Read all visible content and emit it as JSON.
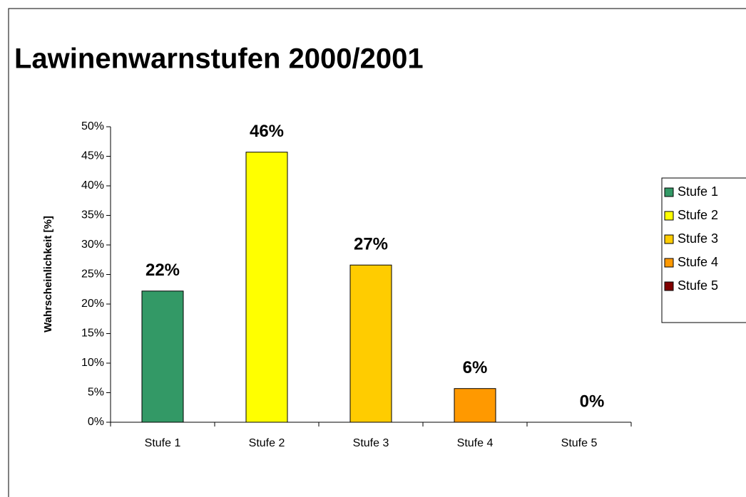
{
  "chart_data": {
    "type": "bar",
    "title": "Lawinenwarnstufen 2000/2001",
    "y_label": "Wahrscheinlichkeit [%]",
    "categories": [
      "Stufe 1",
      "Stufe 2",
      "Stufe 3",
      "Stufe 4",
      "Stufe 5"
    ],
    "values": [
      22.2,
      45.7,
      26.6,
      5.7,
      0
    ],
    "value_labels": [
      "22%",
      "46%",
      "27%",
      "6%",
      "0%"
    ],
    "colors": [
      "#339966",
      "#ffff00",
      "#ffcc00",
      "#ff9900",
      "#800000"
    ],
    "ylim": [
      0,
      50
    ],
    "yticks": [
      {
        "value": 0,
        "label": "0%"
      },
      {
        "value": 5,
        "label": "5%"
      },
      {
        "value": 10,
        "label": "10%"
      },
      {
        "value": 15,
        "label": "15%"
      },
      {
        "value": 20,
        "label": "20%"
      },
      {
        "value": 25,
        "label": "25%"
      },
      {
        "value": 30,
        "label": "30%"
      },
      {
        "value": 35,
        "label": "35%"
      },
      {
        "value": 40,
        "label": "40%"
      },
      {
        "value": 45,
        "label": "45%"
      },
      {
        "value": 50,
        "label": "50%"
      }
    ],
    "legend": "right"
  }
}
